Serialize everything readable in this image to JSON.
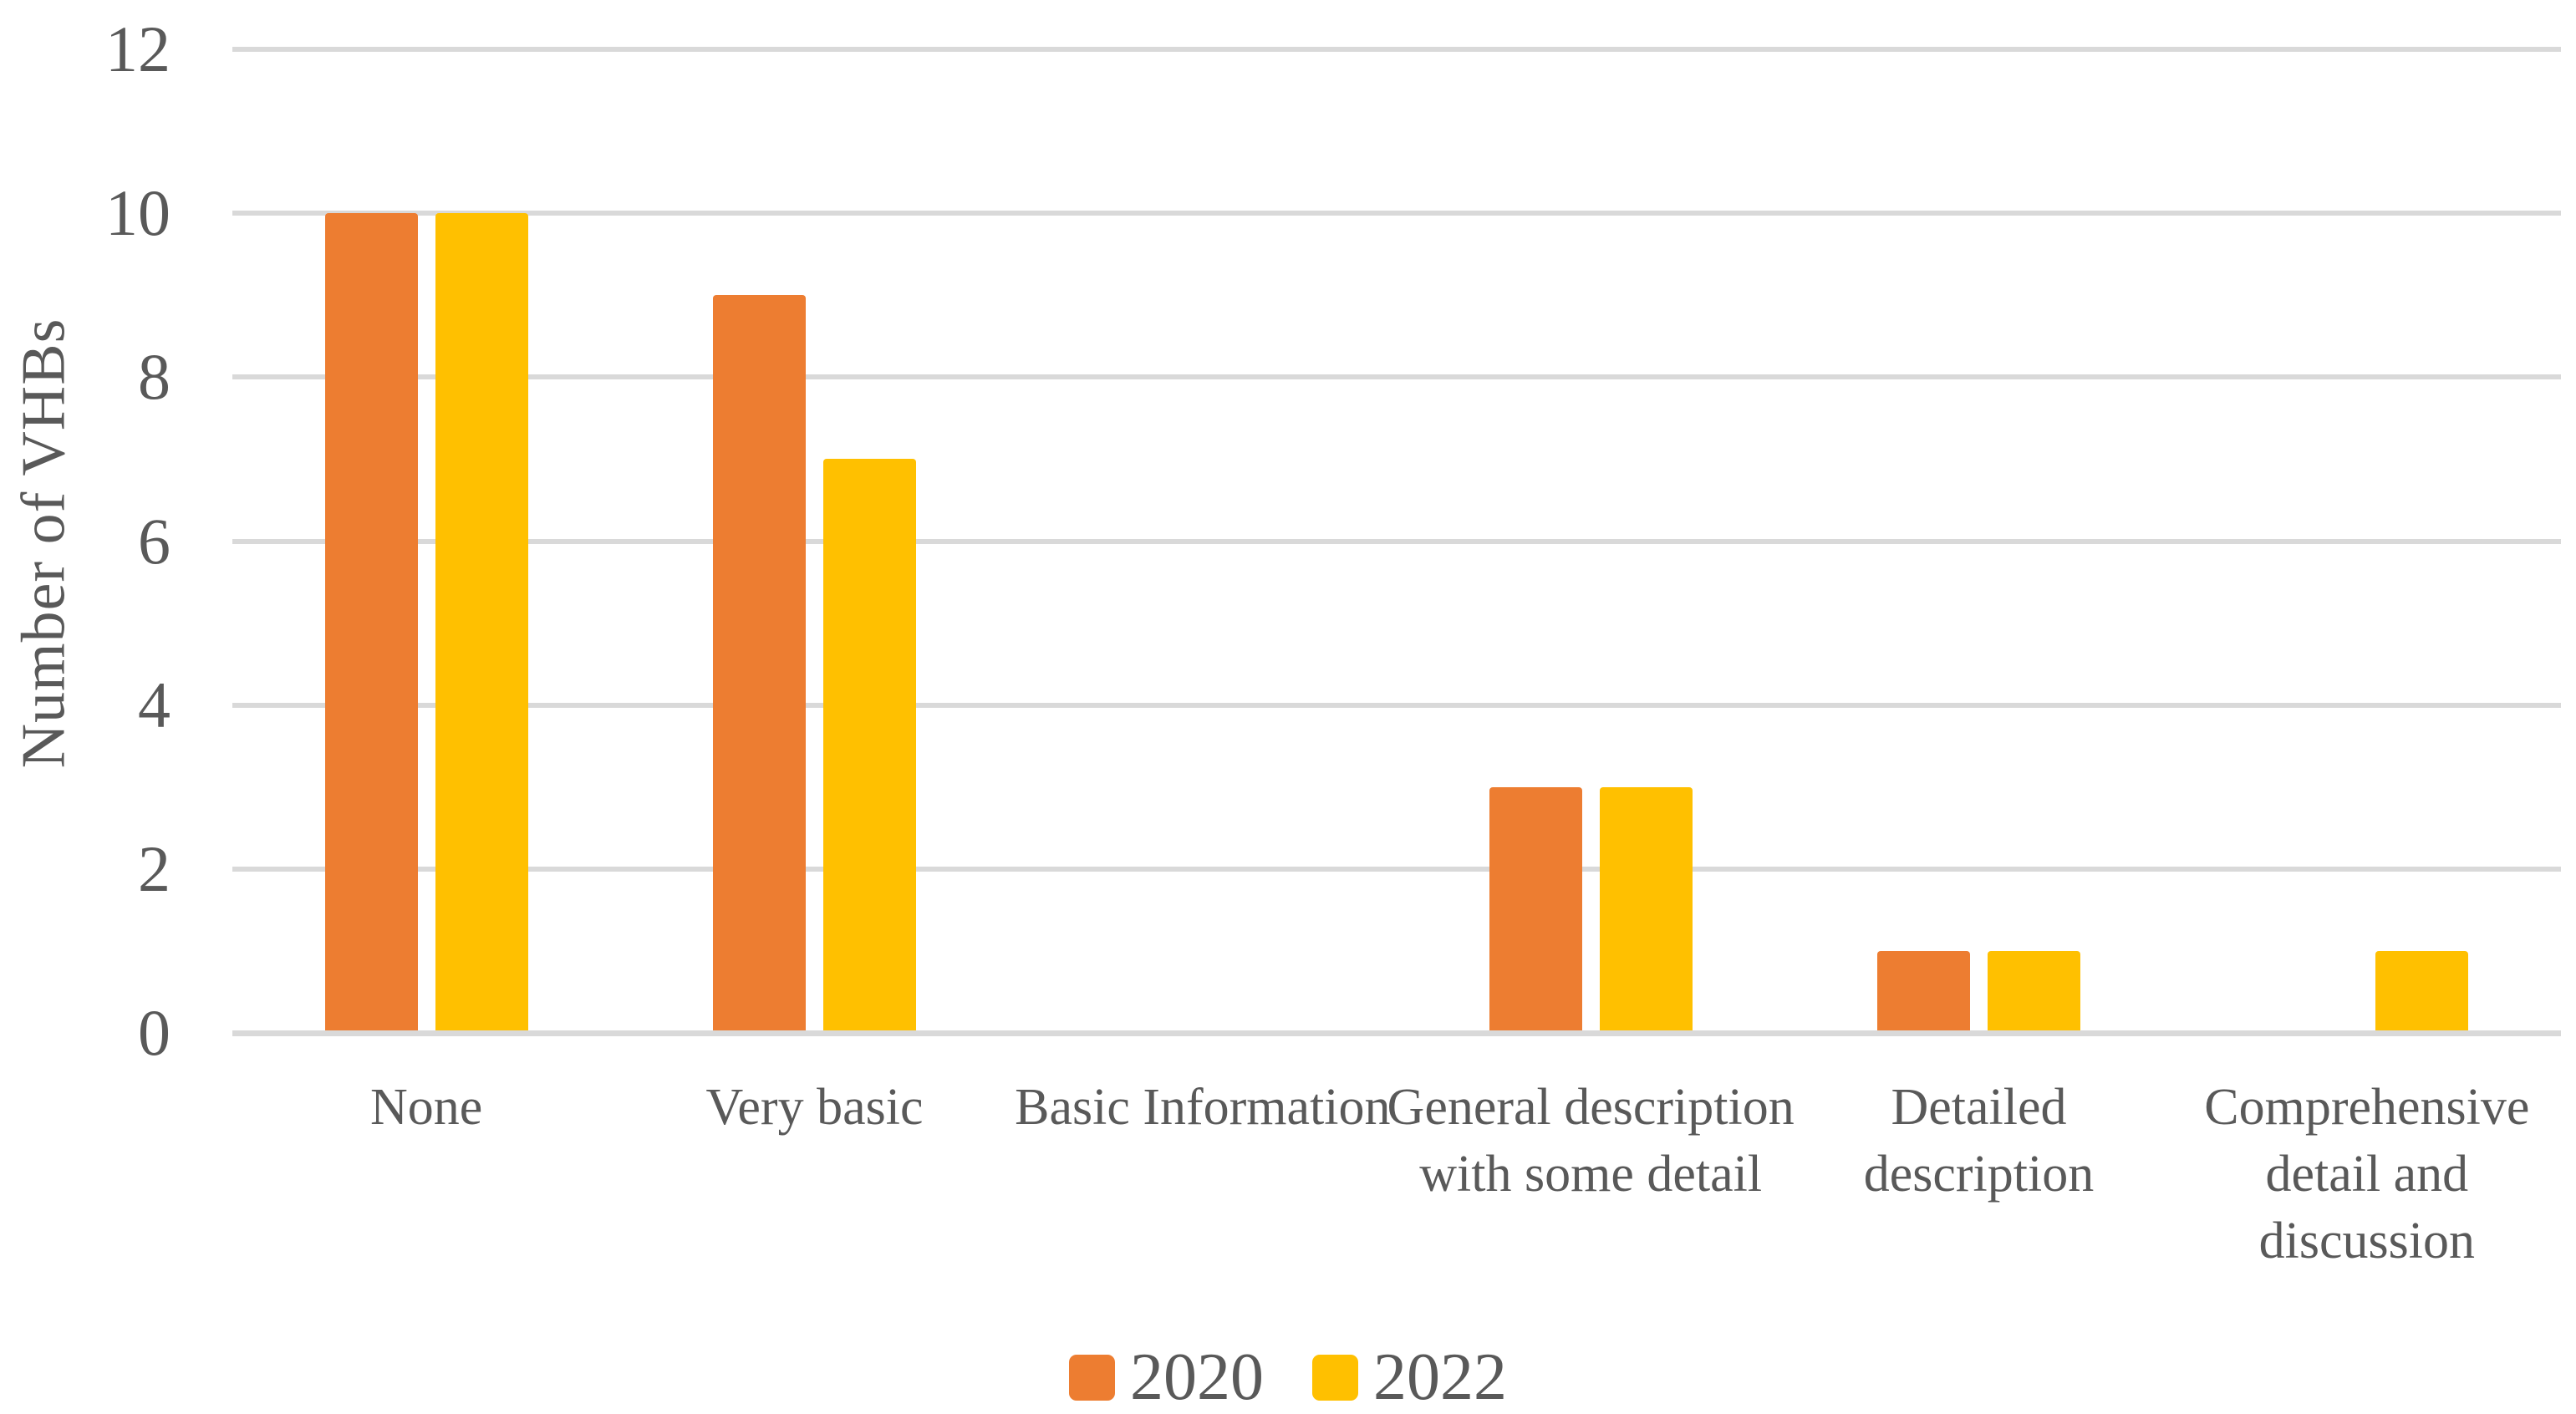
{
  "chart_data": {
    "type": "bar",
    "title": "",
    "ylabel": "Number of VHBs",
    "xlabel": "",
    "categories": [
      "None",
      "Very basic",
      "Basic Information",
      "General description with some detail",
      "Detailed description",
      "Comprehensive detail and discussion"
    ],
    "series": [
      {
        "name": "2020",
        "color": "#ED7D31",
        "values": [
          10,
          9,
          0,
          3,
          1,
          0
        ]
      },
      {
        "name": "2022",
        "color": "#FFC000",
        "values": [
          10,
          7,
          0,
          3,
          1,
          1
        ]
      }
    ],
    "ylim": [
      0,
      12
    ],
    "yticks": [
      0,
      2,
      4,
      6,
      8,
      10,
      12
    ],
    "grid": true,
    "legend_position": "bottom",
    "colors": {
      "grid": "#D9D9D9",
      "axis_text": "#595959"
    }
  }
}
